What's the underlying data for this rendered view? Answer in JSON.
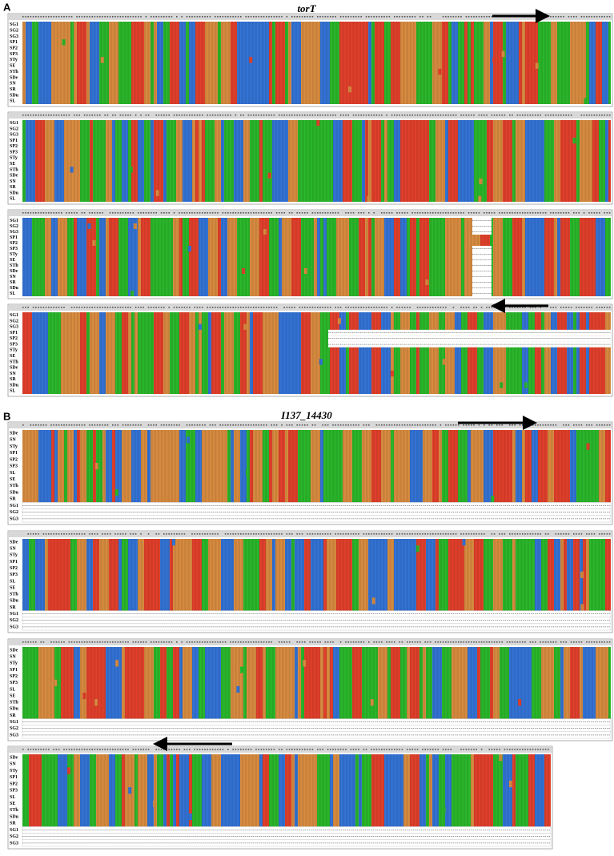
{
  "panels": [
    {
      "letter": "A",
      "title": "torT",
      "blocks": [
        {
          "rows": [
            "SG1",
            "SG2",
            "SG3",
            "SP1",
            "SP2",
            "SP3",
            "STy",
            "SE",
            "STh",
            "SDe",
            "SN",
            "SR",
            "SDu",
            "SL"
          ]
        },
        {
          "rows": [
            "SG1",
            "SG2",
            "SG3",
            "SP1",
            "SP2",
            "SP3",
            "STy",
            "SE",
            "STh",
            "SDe",
            "SN",
            "SR",
            "SDu",
            "SL"
          ]
        },
        {
          "rows": [
            "SG1",
            "SG2",
            "SG3",
            "SP1",
            "SP2",
            "SP3",
            "STy",
            "SE",
            "STh",
            "SDe",
            "SN",
            "SR",
            "SDu",
            "SL"
          ]
        },
        {
          "rows": [
            "SG1",
            "SG2",
            "SG3",
            "SP1",
            "SP2",
            "SP3",
            "STy",
            "SE",
            "STh",
            "SDe",
            "SN",
            "SR",
            "SDu",
            "SL"
          ]
        }
      ]
    },
    {
      "letter": "B",
      "title": "I137_14430",
      "blocks": [
        {
          "rows": [
            "SDe",
            "SN",
            "STy",
            "SP1",
            "SP2",
            "SP3",
            "SL",
            "SE",
            "STh",
            "SDu",
            "SR",
            "SG1",
            "SG2",
            "SG3"
          ]
        },
        {
          "rows": [
            "SDe",
            "SN",
            "STy",
            "SP1",
            "SP2",
            "SP3",
            "SL",
            "SE",
            "STh",
            "SDu",
            "SR",
            "SG1",
            "SG2",
            "SG3"
          ]
        },
        {
          "rows": [
            "SDe",
            "SN",
            "STy",
            "SP1",
            "SP2",
            "SP3",
            "SL",
            "SE",
            "STh",
            "SDu",
            "SR",
            "SG1",
            "SG2",
            "SG3"
          ]
        },
        {
          "rows": [
            "SDe",
            "SN",
            "STy",
            "SP1",
            "SP2",
            "SP3",
            "SL",
            "SE",
            "STh",
            "SDu",
            "SR",
            "SG1",
            "SG2",
            "SG3"
          ]
        }
      ]
    }
  ]
}
